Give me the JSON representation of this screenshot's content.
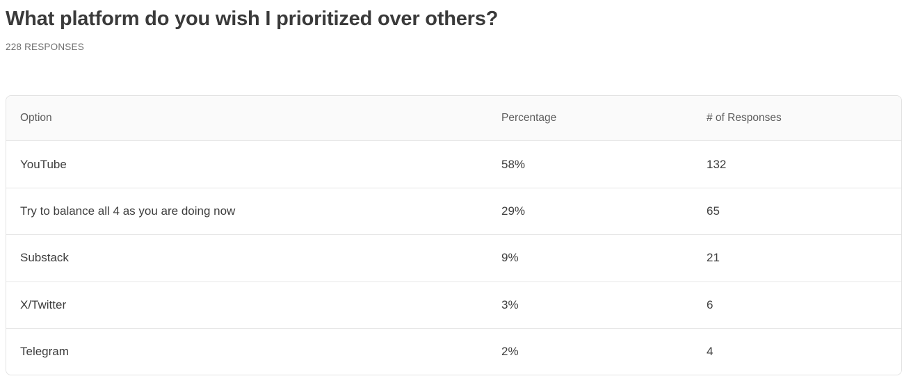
{
  "header": {
    "title": "What platform do you wish I prioritized over others?",
    "responses_label": "228 RESPONSES"
  },
  "table": {
    "columns": [
      "Option",
      "Percentage",
      "# of Responses"
    ],
    "rows": [
      [
        "YouTube",
        "58%",
        "132"
      ],
      [
        "Try to balance all 4 as you are doing now",
        "29%",
        "65"
      ],
      [
        "Substack",
        "9%",
        "21"
      ],
      [
        "X/Twitter",
        "3%",
        "6"
      ],
      [
        "Telegram",
        "2%",
        "4"
      ]
    ]
  },
  "chart_data": {
    "type": "table",
    "title": "What platform do you wish I prioritized over others?",
    "total_responses": 228,
    "columns": [
      "Option",
      "Percentage",
      "# of Responses"
    ],
    "categories": [
      "YouTube",
      "Try to balance all 4 as you are doing now",
      "Substack",
      "X/Twitter",
      "Telegram"
    ],
    "series": [
      {
        "name": "Percentage",
        "values": [
          58,
          29,
          9,
          3,
          2
        ],
        "unit": "%"
      },
      {
        "name": "# of Responses",
        "values": [
          132,
          65,
          21,
          6,
          4
        ]
      }
    ]
  },
  "colors": {
    "header_background": "#fafafa",
    "border": "#e2e2e2",
    "title_text": "#3a3a3a",
    "muted_text": "#6e6e6e",
    "column_header_text": "#5c5c5c",
    "cell_text": "#3d3d3d"
  }
}
